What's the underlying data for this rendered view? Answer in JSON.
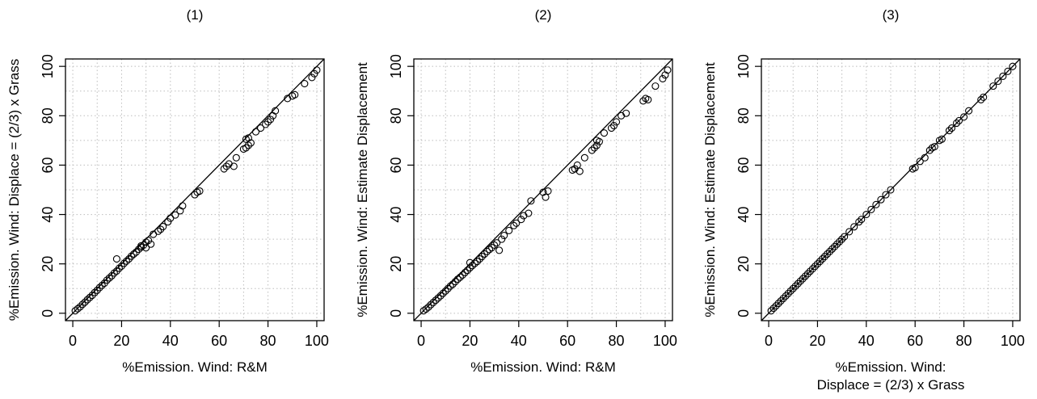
{
  "chart_data": [
    {
      "type": "scatter",
      "title": "(1)",
      "xlabel": [
        "%Emission. Wind: R&M"
      ],
      "ylabel": "%Emission. Wind: Displace = (2/3) x Grass",
      "xlim": [
        0,
        100
      ],
      "ylim": [
        0,
        100
      ],
      "xticks": [
        "0",
        "20",
        "40",
        "60",
        "80",
        "100"
      ],
      "yticks": [
        "0",
        "20",
        "40",
        "60",
        "80",
        "100"
      ],
      "grid": true,
      "reference_line": "y = x",
      "points": [
        [
          1,
          1
        ],
        [
          2,
          1.8
        ],
        [
          3,
          2.6
        ],
        [
          4,
          3.6
        ],
        [
          5,
          4.5
        ],
        [
          6,
          5.5
        ],
        [
          7,
          6.4
        ],
        [
          8,
          7.3
        ],
        [
          9,
          8.4
        ],
        [
          10,
          9.3
        ],
        [
          11,
          10.4
        ],
        [
          12,
          11.3
        ],
        [
          13,
          12.2
        ],
        [
          14,
          13.4
        ],
        [
          15,
          14.3
        ],
        [
          16,
          15.2
        ],
        [
          17,
          16.3
        ],
        [
          18,
          17.1
        ],
        [
          18,
          22
        ],
        [
          19,
          18.2
        ],
        [
          20,
          19.1
        ],
        [
          21,
          20.2
        ],
        [
          22,
          21.1
        ],
        [
          23,
          22
        ],
        [
          24,
          23.1
        ],
        [
          25,
          24
        ],
        [
          26,
          24.8
        ],
        [
          27,
          25.9
        ],
        [
          28,
          26.7
        ],
        [
          29,
          27.6
        ],
        [
          30,
          28.8
        ],
        [
          31,
          29.5
        ],
        [
          32,
          28
        ],
        [
          28,
          27.3
        ],
        [
          30,
          26.5
        ],
        [
          33,
          32
        ],
        [
          35,
          33.2
        ],
        [
          36,
          34
        ],
        [
          37,
          35.1
        ],
        [
          39,
          37
        ],
        [
          40,
          38.5
        ],
        [
          42,
          39.8
        ],
        [
          44,
          41.5
        ],
        [
          45,
          43.5
        ],
        [
          50,
          48
        ],
        [
          51,
          49
        ],
        [
          52,
          49.5
        ],
        [
          62,
          58.5
        ],
        [
          63,
          59.5
        ],
        [
          64,
          60.5
        ],
        [
          66,
          59.5
        ],
        [
          67,
          63
        ],
        [
          70,
          66.5
        ],
        [
          71,
          67
        ],
        [
          72,
          68
        ],
        [
          73,
          69
        ],
        [
          71,
          70.5
        ],
        [
          72,
          71
        ],
        [
          75,
          73.5
        ],
        [
          77,
          75
        ],
        [
          79,
          76.5
        ],
        [
          80,
          77.5
        ],
        [
          81,
          78.5
        ],
        [
          82,
          80
        ],
        [
          83,
          82
        ],
        [
          88,
          87
        ],
        [
          90,
          88
        ],
        [
          91,
          88.5
        ],
        [
          95,
          93
        ],
        [
          98,
          95.5
        ],
        [
          99,
          97
        ],
        [
          100,
          98.5
        ]
      ]
    },
    {
      "type": "scatter",
      "title": "(2)",
      "xlabel": [
        "%Emission. Wind: R&M"
      ],
      "ylabel": "%Emission. Wind: Estimate Displacement",
      "xlim": [
        0,
        100
      ],
      "ylim": [
        0,
        100
      ],
      "xticks": [
        "0",
        "20",
        "40",
        "60",
        "80",
        "100"
      ],
      "yticks": [
        "0",
        "20",
        "40",
        "60",
        "80",
        "100"
      ],
      "grid": true,
      "reference_line": "y = x",
      "points": [
        [
          1,
          1
        ],
        [
          2,
          1.7
        ],
        [
          3,
          2.5
        ],
        [
          4,
          3.5
        ],
        [
          5,
          4.4
        ],
        [
          6,
          5.3
        ],
        [
          7,
          6.2
        ],
        [
          8,
          7.1
        ],
        [
          9,
          8.1
        ],
        [
          10,
          9
        ],
        [
          11,
          10
        ],
        [
          12,
          11
        ],
        [
          13,
          11.8
        ],
        [
          14,
          12.8
        ],
        [
          15,
          13.8
        ],
        [
          16,
          14.6
        ],
        [
          17,
          15.5
        ],
        [
          18,
          16.5
        ],
        [
          19,
          17.4
        ],
        [
          20,
          18.4
        ],
        [
          20,
          20.5
        ],
        [
          21,
          19.3
        ],
        [
          22,
          20.2
        ],
        [
          23,
          21
        ],
        [
          24,
          22
        ],
        [
          25,
          23
        ],
        [
          26,
          24
        ],
        [
          27,
          25
        ],
        [
          28,
          25.8
        ],
        [
          29,
          26.6
        ],
        [
          30,
          27.6
        ],
        [
          31,
          28.5
        ],
        [
          32,
          25.5
        ],
        [
          33,
          30
        ],
        [
          34,
          31.5
        ],
        [
          36,
          33.5
        ],
        [
          38,
          35.5
        ],
        [
          39,
          36.5
        ],
        [
          41,
          38
        ],
        [
          42,
          39.5
        ],
        [
          44,
          40.5
        ],
        [
          45,
          45.5
        ],
        [
          50,
          49
        ],
        [
          51,
          47
        ],
        [
          52,
          49.5
        ],
        [
          62,
          58
        ],
        [
          63,
          58.5
        ],
        [
          64,
          60
        ],
        [
          65,
          57.5
        ],
        [
          67,
          63
        ],
        [
          70,
          66
        ],
        [
          71,
          67
        ],
        [
          72,
          68
        ],
        [
          73,
          69.5
        ],
        [
          72,
          70
        ],
        [
          75,
          73
        ],
        [
          78,
          75
        ],
        [
          79,
          76
        ],
        [
          80,
          77.5
        ],
        [
          82,
          80
        ],
        [
          84,
          81
        ],
        [
          91,
          86
        ],
        [
          92,
          87
        ],
        [
          93,
          86.5
        ],
        [
          96,
          92
        ],
        [
          99,
          95
        ],
        [
          100,
          96.5
        ],
        [
          101,
          98.5
        ]
      ]
    },
    {
      "type": "scatter",
      "title": "(3)",
      "xlabel": [
        "%Emission. Wind:",
        "Displace = (2/3) x Grass"
      ],
      "ylabel": "%Emission. Wind: Estimate Displacement",
      "xlim": [
        0,
        100
      ],
      "ylim": [
        0,
        100
      ],
      "xticks": [
        "0",
        "20",
        "40",
        "60",
        "80",
        "100"
      ],
      "yticks": [
        "0",
        "20",
        "40",
        "60",
        "80",
        "100"
      ],
      "grid": true,
      "reference_line": "y = x",
      "points": [
        [
          1,
          1
        ],
        [
          2,
          2
        ],
        [
          3,
          3
        ],
        [
          4,
          4
        ],
        [
          5,
          5
        ],
        [
          6,
          6
        ],
        [
          7,
          7
        ],
        [
          8,
          8
        ],
        [
          9,
          9
        ],
        [
          10,
          10
        ],
        [
          11,
          11
        ],
        [
          12,
          12
        ],
        [
          13,
          13
        ],
        [
          14,
          14
        ],
        [
          15,
          15
        ],
        [
          16,
          16
        ],
        [
          17,
          17
        ],
        [
          18,
          18
        ],
        [
          19,
          19
        ],
        [
          20,
          20
        ],
        [
          21,
          21
        ],
        [
          22,
          22
        ],
        [
          23,
          23
        ],
        [
          24,
          24
        ],
        [
          25,
          25
        ],
        [
          26,
          26
        ],
        [
          27,
          27
        ],
        [
          28,
          28
        ],
        [
          29,
          29
        ],
        [
          30,
          30
        ],
        [
          31,
          31
        ],
        [
          33,
          33
        ],
        [
          35,
          35
        ],
        [
          37,
          37
        ],
        [
          38,
          38
        ],
        [
          40,
          40
        ],
        [
          42,
          42
        ],
        [
          44,
          44
        ],
        [
          46,
          46
        ],
        [
          48,
          48
        ],
        [
          50,
          50
        ],
        [
          59,
          58.5
        ],
        [
          60,
          59
        ],
        [
          62,
          61.5
        ],
        [
          64,
          63
        ],
        [
          66,
          66
        ],
        [
          67,
          67
        ],
        [
          68,
          67.5
        ],
        [
          70,
          70
        ],
        [
          71,
          70.5
        ],
        [
          74,
          74
        ],
        [
          75,
          75
        ],
        [
          77,
          77
        ],
        [
          78,
          78
        ],
        [
          80,
          79.5
        ],
        [
          82,
          82
        ],
        [
          87,
          86.5
        ],
        [
          88,
          87.5
        ],
        [
          92,
          92
        ],
        [
          94,
          94
        ],
        [
          96,
          96
        ],
        [
          98,
          98
        ],
        [
          100,
          100
        ]
      ]
    }
  ]
}
